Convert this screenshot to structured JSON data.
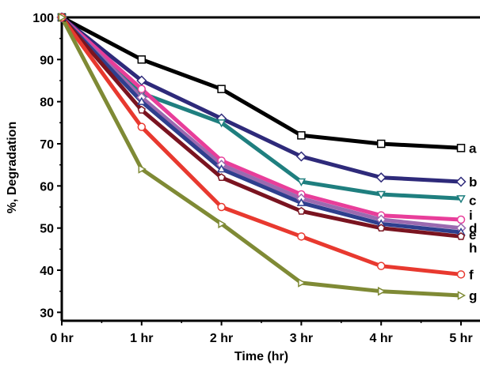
{
  "chart_data": {
    "type": "line",
    "title": "",
    "xlabel": "Time (hr)",
    "ylabel": "%, Degradation",
    "categories": [
      "0 hr",
      "1 hr",
      "2 hr",
      "3 hr",
      "4 hr",
      "5 hr"
    ],
    "ylim": [
      28,
      100
    ],
    "yticks": [
      30,
      40,
      50,
      60,
      70,
      80,
      90,
      100
    ],
    "grid": false,
    "legend": "inline labels at line ends (right side)",
    "series": [
      {
        "name": "a",
        "color": "#000000",
        "marker": "square",
        "values": [
          100,
          90,
          83,
          72,
          70,
          69
        ]
      },
      {
        "name": "b",
        "color": "#2e2a7a",
        "marker": "diamond",
        "values": [
          100,
          85,
          76,
          67,
          62,
          61
        ]
      },
      {
        "name": "c",
        "color": "#1f7f7f",
        "marker": "triangle-down",
        "values": [
          100,
          82,
          75,
          61,
          58,
          57
        ]
      },
      {
        "name": "i",
        "color": "#e83e9a",
        "marker": "circle",
        "values": [
          100,
          83,
          66,
          58,
          53,
          52
        ]
      },
      {
        "name": "d",
        "color": "#9a6ab0",
        "marker": "diamond",
        "values": [
          100,
          81,
          65,
          57,
          52,
          50
        ]
      },
      {
        "name": "e",
        "color": "#2e3f8e",
        "marker": "triangle-up",
        "values": [
          100,
          80,
          64,
          56,
          51,
          49
        ]
      },
      {
        "name": "h",
        "color": "#7a1420",
        "marker": "pentagon",
        "values": [
          100,
          78,
          62,
          54,
          50,
          48
        ]
      },
      {
        "name": "f",
        "color": "#e8392f",
        "marker": "circle",
        "values": [
          100,
          74,
          55,
          48,
          41,
          39
        ]
      },
      {
        "name": "g",
        "color": "#7f8a35",
        "marker": "triangle-right",
        "values": [
          100,
          64,
          51,
          37,
          35,
          34
        ]
      }
    ]
  }
}
